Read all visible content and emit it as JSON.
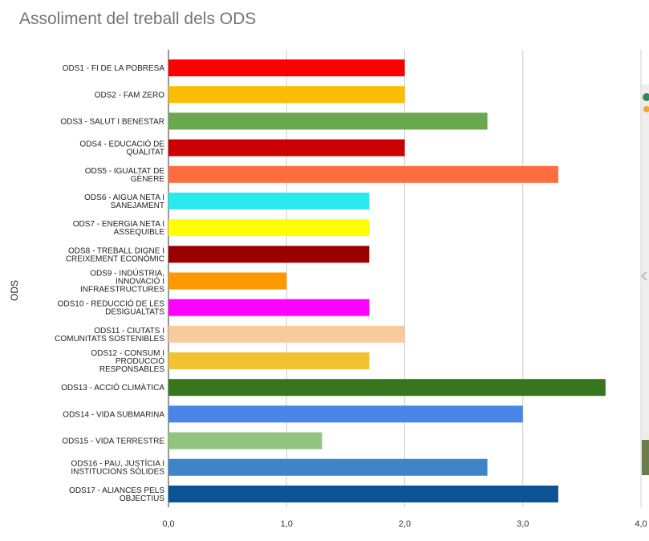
{
  "chart_data": {
    "type": "bar",
    "orientation": "horizontal",
    "title": "Assoliment del treball dels ODS",
    "xlabel": "",
    "ylabel": "ODS",
    "xlim": [
      0,
      4
    ],
    "x_ticks": [
      "0,0",
      "1,0",
      "2,0",
      "3,0",
      "4,0"
    ],
    "grid": true,
    "legend": "none",
    "categories": [
      [
        "ODS1 - FI DE LA POBRESA"
      ],
      [
        "ODS2 -  FAM ZERO"
      ],
      [
        "ODS3 - SALUT I BENESTAR"
      ],
      [
        "ODS4 - EDUCACIÓ DE",
        "QUALITAT"
      ],
      [
        "ODS5 - IGUALTAT DE",
        "GÈNERE"
      ],
      [
        "ODS6 - AIGUA NETA I",
        "SANEJAMENT"
      ],
      [
        "ODS7 - ENERGIA NETA I",
        "ASSEQUIBLE"
      ],
      [
        "ODS8 - TREBALL DIGNE I",
        "CREIXEMENT ECONÒMIC"
      ],
      [
        "ODS9 - INDÚSTRIA,",
        "INNOVACIÓ I",
        "INFRAESTRUCTURES"
      ],
      [
        "ODS10 - REDUCCIÓ DE LES",
        "DESIGUALTATS"
      ],
      [
        "ODS11 - CIUTATS I",
        "COMUNITATS SOSTENIBLES"
      ],
      [
        "ODS12 - CONSUM I",
        "PRODUCCIÓ",
        "RESPONSABLES"
      ],
      [
        "ODS13 - ACCIÓ CLIMÀTICA"
      ],
      [
        "ODS14 - VIDA SUBMARINA"
      ],
      [
        "ODS15 - VIDA TERRESTRE"
      ],
      [
        "ODS16 - PAU, JUSTÍCIA I",
        "INSTITUCIONS SÒLIDES"
      ],
      [
        "ODS17 - ALIANCES PELS",
        "OBJECTIUS"
      ]
    ],
    "values": [
      2.0,
      2.0,
      2.7,
      2.0,
      3.3,
      1.7,
      1.7,
      1.7,
      1.0,
      1.7,
      2.0,
      1.7,
      3.7,
      3.0,
      1.3,
      2.7,
      3.3
    ],
    "colors": [
      "#ff0000",
      "#fbbc04",
      "#6aa84f",
      "#cc0000",
      "#ff6d3f",
      "#2aeaed",
      "#ffff00",
      "#990000",
      "#ff9900",
      "#ff00ff",
      "#f9cb9c",
      "#f1c232",
      "#38761d",
      "#4a86e8",
      "#93c47d",
      "#3d85c6",
      "#0b5394"
    ]
  }
}
